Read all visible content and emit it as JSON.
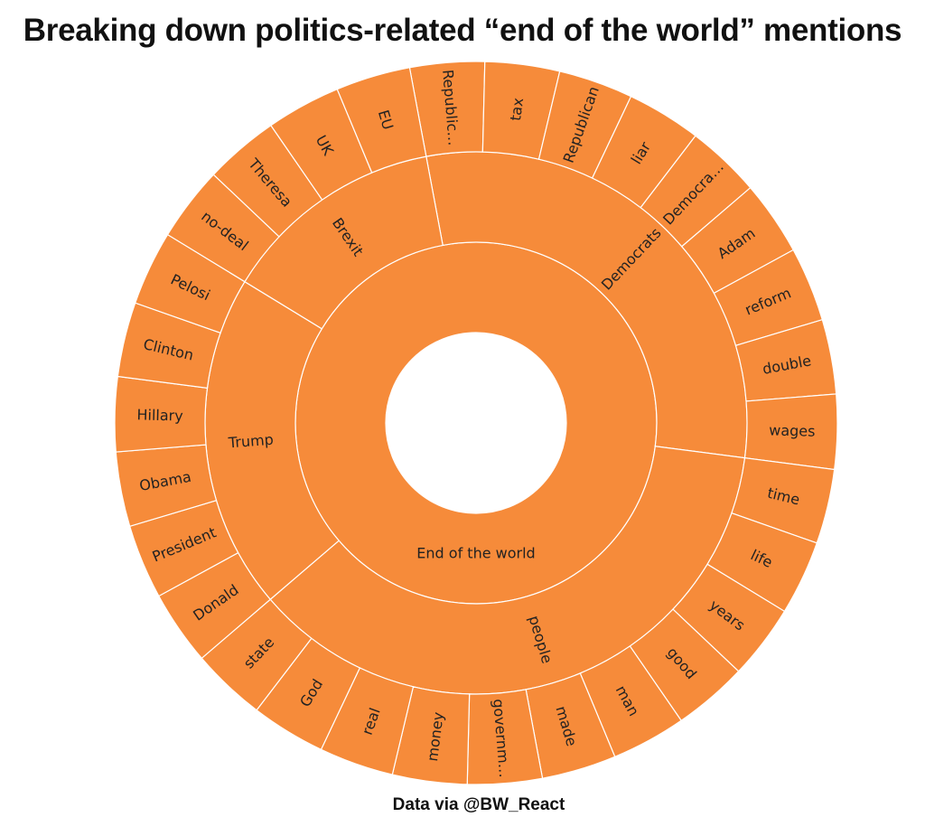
{
  "title": "Breaking down politics-related “end of the world” mentions",
  "caption": "Data via @BW_React",
  "chart_data": {
    "type": "sunburst",
    "fill_color": "#f68b3a",
    "stroke_color": "#ffffff",
    "label_color": "#222222",
    "root": {
      "name": "End of the world",
      "children": [
        {
          "name": "Democrats",
          "children": [
            {
              "name": "Republicans",
              "label": "Republic…"
            },
            {
              "name": "tax"
            },
            {
              "name": "Republican"
            },
            {
              "name": "liar"
            },
            {
              "name": "Democrats",
              "label": "Democra…"
            },
            {
              "name": "Adam"
            },
            {
              "name": "reform"
            },
            {
              "name": "double"
            },
            {
              "name": "wages"
            }
          ]
        },
        {
          "name": "people",
          "children": [
            {
              "name": "time"
            },
            {
              "name": "life"
            },
            {
              "name": "years"
            },
            {
              "name": "good"
            },
            {
              "name": "man"
            },
            {
              "name": "made"
            },
            {
              "name": "government",
              "label": "governm…"
            },
            {
              "name": "money"
            },
            {
              "name": "real"
            },
            {
              "name": "God"
            },
            {
              "name": "state"
            }
          ]
        },
        {
          "name": "Trump",
          "children": [
            {
              "name": "Donald"
            },
            {
              "name": "President"
            },
            {
              "name": "Obama"
            },
            {
              "name": "Hillary"
            },
            {
              "name": "Clinton"
            },
            {
              "name": "Pelosi"
            }
          ]
        },
        {
          "name": "Brexit",
          "children": [
            {
              "name": "no-deal"
            },
            {
              "name": "Theresa"
            },
            {
              "name": "UK"
            },
            {
              "name": "EU"
            }
          ]
        }
      ]
    }
  }
}
